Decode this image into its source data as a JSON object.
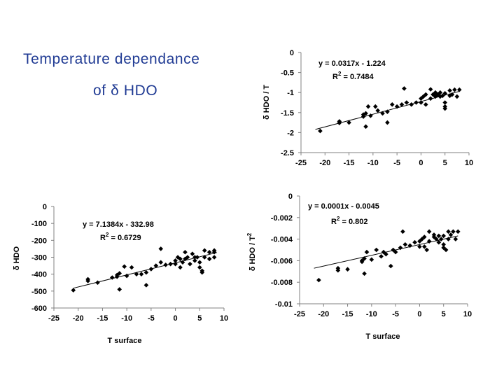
{
  "slide": {
    "title_line1": "Temperature dependance",
    "title_line2": "of δ HDO",
    "text_color": "#1f3a93"
  },
  "chart_data": [
    {
      "id": "tr",
      "type": "scatter",
      "title": "",
      "xlabel": "",
      "ylabel": "δ HDO / T",
      "xlim": [
        -25,
        10
      ],
      "ylim": [
        -2.5,
        0
      ],
      "xticks": [
        -25,
        -20,
        -15,
        -10,
        -5,
        0,
        5,
        10
      ],
      "yticks": [
        0,
        -0.5,
        -1,
        -1.5,
        -2,
        -2.5
      ],
      "ytick_labels": [
        "0",
        "-0.5",
        "-1",
        "-1.5",
        "-2",
        "-2.5"
      ],
      "equation": "y = 0.0317x - 1.224",
      "r2_label": "R",
      "r2_value": " = 0.7484",
      "trendline": {
        "slope": 0.0317,
        "intercept": -1.224,
        "x_range": [
          -22,
          8
        ]
      },
      "points": [
        [
          -21,
          -1.96
        ],
        [
          -17,
          -1.72
        ],
        [
          -17,
          -1.76
        ],
        [
          -15,
          -1.75
        ],
        [
          -12,
          -1.6
        ],
        [
          -12,
          -1.55
        ],
        [
          -11.5,
          -1.52
        ],
        [
          -11.5,
          -1.85
        ],
        [
          -11,
          -1.35
        ],
        [
          -10.5,
          -1.58
        ],
        [
          -9.5,
          -1.35
        ],
        [
          -9,
          -1.45
        ],
        [
          -8,
          -1.52
        ],
        [
          -7,
          -1.48
        ],
        [
          -7,
          -1.75
        ],
        [
          -6,
          -1.3
        ],
        [
          -5,
          -1.35
        ],
        [
          -4,
          -1.3
        ],
        [
          -3.5,
          -0.9
        ],
        [
          -3,
          -1.25
        ],
        [
          -2,
          -1.3
        ],
        [
          -1,
          -1.25
        ],
        [
          0,
          -1.15
        ],
        [
          0,
          -1.25
        ],
        [
          0.5,
          -1.1
        ],
        [
          1,
          -1.05
        ],
        [
          1,
          -1.3
        ],
        [
          2,
          -0.92
        ],
        [
          2,
          -1.15
        ],
        [
          2.5,
          -1.05
        ],
        [
          3,
          -1.0
        ],
        [
          3,
          -1.1
        ],
        [
          3.5,
          -1.05
        ],
        [
          4,
          -1.0
        ],
        [
          4,
          -1.1
        ],
        [
          4.5,
          -1.08
        ],
        [
          5,
          -1.02
        ],
        [
          5,
          -1.25
        ],
        [
          5,
          -1.35
        ],
        [
          5,
          -1.4
        ],
        [
          6,
          -0.95
        ],
        [
          6,
          -1.08
        ],
        [
          6.5,
          -1.05
        ],
        [
          7,
          -0.93
        ],
        [
          7.5,
          -1.1
        ],
        [
          8,
          -0.93
        ]
      ]
    },
    {
      "id": "bl",
      "type": "scatter",
      "title": "",
      "xlabel": "T surface",
      "ylabel": "δ HDO",
      "xlim": [
        -25,
        10
      ],
      "ylim": [
        -600,
        0
      ],
      "xticks": [
        -25,
        -20,
        -15,
        -10,
        -5,
        0,
        5,
        10
      ],
      "yticks": [
        0,
        -100,
        -200,
        -300,
        -400,
        -500,
        -600
      ],
      "ytick_labels": [
        "0",
        "-100",
        "-200",
        "-300",
        "-400",
        "-500",
        "-600"
      ],
      "equation": "y = 7.1384x - 332.98",
      "r2_label": "R",
      "r2_value": " = 0.6729",
      "trendline": {
        "slope": 7.1384,
        "intercept": -332.98,
        "x_range": [
          -21,
          8.5
        ]
      },
      "points": [
        [
          -21,
          -495
        ],
        [
          -18,
          -430
        ],
        [
          -18,
          -440
        ],
        [
          -16,
          -450
        ],
        [
          -13,
          -420
        ],
        [
          -12,
          -405
        ],
        [
          -12,
          -415
        ],
        [
          -11.5,
          -395
        ],
        [
          -11.5,
          -490
        ],
        [
          -10.5,
          -355
        ],
        [
          -10,
          -410
        ],
        [
          -9,
          -360
        ],
        [
          -8,
          -400
        ],
        [
          -7,
          -400
        ],
        [
          -6,
          -390
        ],
        [
          -6,
          -465
        ],
        [
          -5,
          -370
        ],
        [
          -4,
          -350
        ],
        [
          -3,
          -250
        ],
        [
          -3,
          -330
        ],
        [
          -2,
          -345
        ],
        [
          -1,
          -340
        ],
        [
          0,
          -320
        ],
        [
          0,
          -340
        ],
        [
          0.5,
          -300
        ],
        [
          1,
          -360
        ],
        [
          1,
          -310
        ],
        [
          1.5,
          -330
        ],
        [
          2,
          -270
        ],
        [
          2,
          -310
        ],
        [
          2.5,
          -300
        ],
        [
          3,
          -340
        ],
        [
          3.5,
          -280
        ],
        [
          4,
          -300
        ],
        [
          4,
          -320
        ],
        [
          4.5,
          -300
        ],
        [
          5,
          -330
        ],
        [
          5,
          -360
        ],
        [
          5.5,
          -380
        ],
        [
          5.5,
          -390
        ],
        [
          6,
          -260
        ],
        [
          6,
          -300
        ],
        [
          7,
          -270
        ],
        [
          7,
          -310
        ],
        [
          8,
          -260
        ],
        [
          8,
          -270
        ],
        [
          8,
          -300
        ]
      ]
    },
    {
      "id": "br",
      "type": "scatter",
      "title": "",
      "xlabel": "T surface",
      "ylabel": "δ HDO / T",
      "ylabel_exp": "2",
      "xlim": [
        -25,
        10
      ],
      "ylim": [
        -0.01,
        0
      ],
      "xticks": [
        -25,
        -20,
        -15,
        -10,
        -5,
        0,
        5,
        10
      ],
      "yticks": [
        0,
        -0.002,
        -0.004,
        -0.006,
        -0.008,
        -0.01
      ],
      "ytick_labels": [
        "0",
        "-0.002",
        "-0.004",
        "-0.006",
        "-0.008",
        "-0.01"
      ],
      "equation": "y = 0.0001x - 0.0045",
      "r2_label": "R",
      "r2_value": " = 0.802",
      "trendline": {
        "slope": 0.0001,
        "intercept": -0.0045,
        "x_range": [
          -22,
          8
        ]
      },
      "points": [
        [
          -21,
          -0.0078
        ],
        [
          -17,
          -0.0067
        ],
        [
          -17,
          -0.0069
        ],
        [
          -15,
          -0.0068
        ],
        [
          -12,
          -0.006
        ],
        [
          -12,
          -0.0061
        ],
        [
          -11.5,
          -0.0058
        ],
        [
          -11.5,
          -0.0072
        ],
        [
          -11,
          -0.0052
        ],
        [
          -10,
          -0.0059
        ],
        [
          -9,
          -0.005
        ],
        [
          -8,
          -0.0056
        ],
        [
          -7.5,
          -0.0052
        ],
        [
          -7,
          -0.0054
        ],
        [
          -6,
          -0.0065
        ],
        [
          -5.5,
          -0.005
        ],
        [
          -5,
          -0.0052
        ],
        [
          -4,
          -0.0048
        ],
        [
          -3.5,
          -0.0033
        ],
        [
          -3,
          -0.0045
        ],
        [
          -2,
          -0.0046
        ],
        [
          -1,
          -0.0043
        ],
        [
          0,
          -0.0042
        ],
        [
          0,
          -0.0047
        ],
        [
          0.5,
          -0.004
        ],
        [
          1,
          -0.0038
        ],
        [
          1,
          -0.0047
        ],
        [
          1.5,
          -0.005
        ],
        [
          2,
          -0.0033
        ],
        [
          2,
          -0.0042
        ],
        [
          3,
          -0.0038
        ],
        [
          3,
          -0.0036
        ],
        [
          3.5,
          -0.004
        ],
        [
          4,
          -0.0037
        ],
        [
          4,
          -0.0043
        ],
        [
          4.5,
          -0.004
        ],
        [
          5,
          -0.0037
        ],
        [
          5,
          -0.0045
        ],
        [
          5,
          -0.0048
        ],
        [
          5.5,
          -0.005
        ],
        [
          6,
          -0.0033
        ],
        [
          6,
          -0.004
        ],
        [
          6.5,
          -0.0036
        ],
        [
          7,
          -0.0033
        ],
        [
          7.5,
          -0.004
        ],
        [
          8,
          -0.0033
        ]
      ]
    }
  ]
}
